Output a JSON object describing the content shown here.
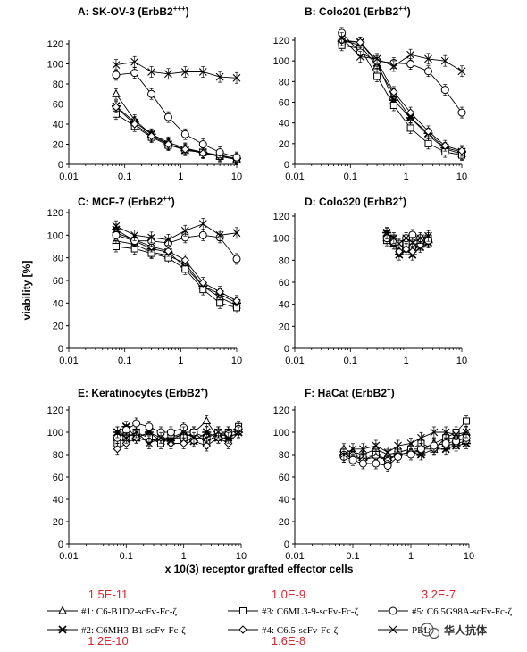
{
  "figure": {
    "ylabel": "viability [%]",
    "xlabel": "x 10(3) receptor grafted effector cells",
    "watermark": "华人抗体",
    "legend": [
      {
        "label": "#1: C6-B1D2-scFv-Fc-ζ",
        "marker": "triangle",
        "affinity": "1.5E-11"
      },
      {
        "label": "#2: C6MH3-B1-scFv-Fc-ζ",
        "marker": "star",
        "affinity": "1.2E-10"
      },
      {
        "label": "#3: C6ML3-9-scFv-Fc-ζ",
        "marker": "square",
        "affinity": "1.0E-9"
      },
      {
        "label": "#4: C6.5-scFv-Fc-ζ",
        "marker": "diamond",
        "affinity": "1.6E-8"
      },
      {
        "label": "#5: C6.5G98A-scFv-Fc-ζ",
        "marker": "circle",
        "affinity": "3.2E-7"
      },
      {
        "label": "PBL",
        "marker": "x",
        "affinity": ""
      }
    ]
  },
  "chart_data": [
    {
      "type": "line",
      "title": "A: SK-OV-3 (ErbB2",
      "title_sup": "+++",
      "title_end": ")",
      "xscale": "log",
      "xlim": [
        0.01,
        10
      ],
      "ylim": [
        0,
        120
      ],
      "xticks": [
        "0.01",
        "0.1",
        "1",
        "10"
      ],
      "yticks": [
        "0",
        "20",
        "40",
        "60",
        "80",
        "100",
        "120"
      ],
      "x": [
        0.07,
        0.15,
        0.3,
        0.6,
        1.2,
        2.5,
        5,
        10
      ],
      "series": [
        {
          "marker": "triangle",
          "values": [
            70,
            44,
            30,
            22,
            16,
            12,
            8,
            5
          ]
        },
        {
          "marker": "star",
          "values": [
            58,
            42,
            30,
            20,
            14,
            12,
            9,
            6
          ]
        },
        {
          "marker": "square",
          "values": [
            50,
            38,
            27,
            19,
            15,
            12,
            8,
            5
          ]
        },
        {
          "marker": "diamond",
          "values": [
            57,
            40,
            28,
            20,
            15,
            11,
            8,
            5
          ]
        },
        {
          "marker": "circle",
          "values": [
            89,
            91,
            70,
            47,
            30,
            20,
            12,
            7
          ]
        },
        {
          "marker": "x",
          "values": [
            99,
            102,
            92,
            90,
            92,
            92,
            87,
            86
          ]
        }
      ]
    },
    {
      "type": "line",
      "title": "B: Colo201 (ErbB2",
      "title_sup": "++",
      "title_end": ")",
      "xscale": "log",
      "xlim": [
        0.01,
        10
      ],
      "ylim": [
        0,
        120
      ],
      "xticks": [
        "0.01",
        "0.1",
        "1",
        "10"
      ],
      "yticks": [
        "0",
        "20",
        "40",
        "60",
        "80",
        "100",
        "120"
      ],
      "x": [
        0.07,
        0.15,
        0.3,
        0.6,
        1.2,
        2.5,
        5,
        10
      ],
      "series": [
        {
          "marker": "triangle",
          "values": [
            120,
            115,
            95,
            68,
            45,
            28,
            15,
            10
          ]
        },
        {
          "marker": "star",
          "values": [
            119,
            118,
            98,
            62,
            45,
            30,
            16,
            12
          ]
        },
        {
          "marker": "square",
          "values": [
            115,
            112,
            85,
            57,
            35,
            20,
            12,
            9
          ]
        },
        {
          "marker": "diamond",
          "values": [
            120,
            118,
            100,
            70,
            50,
            32,
            18,
            13
          ]
        },
        {
          "marker": "circle",
          "values": [
            127,
            108,
            100,
            98,
            97,
            90,
            72,
            50
          ]
        },
        {
          "marker": "x",
          "values": [
            122,
            104,
            102,
            95,
            106,
            102,
            100,
            90
          ]
        }
      ]
    },
    {
      "type": "line",
      "title": "C: MCF-7 (ErbB2",
      "title_sup": "++",
      "title_end": ")",
      "xscale": "log",
      "xlim": [
        0.01,
        10
      ],
      "ylim": [
        0,
        120
      ],
      "xticks": [
        "0.01",
        "0.1",
        "1",
        "10"
      ],
      "yticks": [
        "0",
        "20",
        "40",
        "60",
        "80",
        "100",
        "120"
      ],
      "x": [
        0.07,
        0.15,
        0.3,
        0.6,
        1.2,
        2.5,
        5,
        10
      ],
      "series": [
        {
          "marker": "triangle",
          "values": [
            95,
            92,
            85,
            82,
            75,
            55,
            45,
            38
          ]
        },
        {
          "marker": "star",
          "values": [
            105,
            95,
            88,
            85,
            72,
            55,
            48,
            40
          ]
        },
        {
          "marker": "square",
          "values": [
            90,
            88,
            84,
            80,
            70,
            52,
            40,
            36
          ]
        },
        {
          "marker": "diamond",
          "values": [
            102,
            96,
            90,
            86,
            78,
            58,
            50,
            42
          ]
        },
        {
          "marker": "circle",
          "values": [
            100,
            95,
            95,
            93,
            98,
            100,
            98,
            79
          ]
        },
        {
          "marker": "x",
          "values": [
            108,
            100,
            98,
            96,
            104,
            110,
            100,
            102
          ]
        }
      ]
    },
    {
      "type": "line",
      "title": "D: Colo320 (ErbB2",
      "title_sup": "+",
      "title_end": ")",
      "xscale": "log",
      "xlim": [
        0.01,
        10
      ],
      "ylim": [
        0,
        120
      ],
      "xticks": [
        "0.01",
        "0.1",
        "1",
        "10"
      ],
      "yticks": [
        "0",
        "20",
        "40",
        "60",
        "80",
        "100",
        "120"
      ],
      "x": [
        0.45,
        0.6,
        0.75,
        1.0,
        1.3,
        1.8,
        2.5
      ],
      "series": [
        {
          "marker": "triangle",
          "values": [
            100,
            95,
            88,
            92,
            90,
            95,
            100
          ]
        },
        {
          "marker": "star",
          "values": [
            105,
            95,
            85,
            90,
            85,
            92,
            96
          ]
        },
        {
          "marker": "square",
          "values": [
            98,
            100,
            90,
            95,
            92,
            98,
            100
          ]
        },
        {
          "marker": "diamond",
          "values": [
            102,
            98,
            88,
            90,
            88,
            94,
            97
          ]
        },
        {
          "marker": "circle",
          "values": [
            100,
            97,
            95,
            100,
            103,
            100,
            98
          ]
        },
        {
          "marker": "x",
          "values": [
            104,
            100,
            95,
            100,
            96,
            100,
            102
          ]
        }
      ]
    },
    {
      "type": "line",
      "title": "E: Keratinocytes (ErbB2",
      "title_sup": "+",
      "title_end": ")",
      "xscale": "log",
      "xlim": [
        0.01,
        10
      ],
      "ylim": [
        0,
        120
      ],
      "xticks": [
        "0.01",
        "0.1",
        "1",
        "10"
      ],
      "yticks": [
        "0",
        "20",
        "40",
        "60",
        "80",
        "100",
        "120"
      ],
      "x": [
        0.07,
        0.1,
        0.15,
        0.25,
        0.4,
        0.6,
        1.0,
        1.5,
        2.5,
        4,
        6,
        9
      ],
      "series": [
        {
          "marker": "triangle",
          "values": [
            95,
            100,
            95,
            100,
            95,
            95,
            100,
            100,
            110,
            95,
            100,
            105
          ]
        },
        {
          "marker": "star",
          "values": [
            100,
            105,
            95,
            100,
            92,
            95,
            95,
            92,
            100,
            95,
            95,
            100
          ]
        },
        {
          "marker": "square",
          "values": [
            90,
            95,
            100,
            95,
            90,
            98,
            95,
            100,
            90,
            100,
            100,
            105
          ]
        },
        {
          "marker": "diamond",
          "values": [
            85,
            90,
            95,
            92,
            95,
            90,
            90,
            92,
            88,
            95,
            90,
            100
          ]
        },
        {
          "marker": "circle",
          "values": [
            95,
            102,
            108,
            105,
            100,
            100,
            104,
            100,
            95,
            100,
            98,
            103
          ]
        },
        {
          "marker": "x",
          "values": [
            100,
            95,
            100,
            90,
            95,
            92,
            100,
            95,
            95,
            100,
            95,
            100
          ]
        }
      ]
    },
    {
      "type": "line",
      "title": "F: HaCat (ErbB2",
      "title_sup": "+",
      "title_end": ")",
      "xscale": "log",
      "xlim": [
        0.01,
        10
      ],
      "ylim": [
        0,
        120
      ],
      "xticks": [
        "0.01",
        "0.1",
        "1",
        "10"
      ],
      "yticks": [
        "0",
        "20",
        "40",
        "60",
        "80",
        "100",
        "120"
      ],
      "x": [
        0.07,
        0.1,
        0.15,
        0.25,
        0.4,
        0.6,
        1.0,
        1.5,
        2.5,
        4,
        6,
        9
      ],
      "series": [
        {
          "marker": "triangle",
          "values": [
            85,
            82,
            80,
            85,
            80,
            82,
            85,
            85,
            90,
            95,
            95,
            100
          ]
        },
        {
          "marker": "star",
          "values": [
            80,
            78,
            75,
            80,
            75,
            80,
            82,
            80,
            85,
            85,
            88,
            90
          ]
        },
        {
          "marker": "square",
          "values": [
            82,
            80,
            78,
            80,
            75,
            82,
            85,
            90,
            85,
            95,
            100,
            110
          ]
        },
        {
          "marker": "diamond",
          "values": [
            78,
            80,
            75,
            78,
            75,
            80,
            82,
            85,
            85,
            88,
            90,
            92
          ]
        },
        {
          "marker": "circle",
          "values": [
            78,
            75,
            72,
            72,
            70,
            78,
            80,
            85,
            88,
            90,
            92,
            95
          ]
        },
        {
          "marker": "x",
          "values": [
            80,
            85,
            85,
            88,
            82,
            88,
            90,
            95,
            100,
            100,
            98,
            100
          ]
        }
      ]
    }
  ]
}
